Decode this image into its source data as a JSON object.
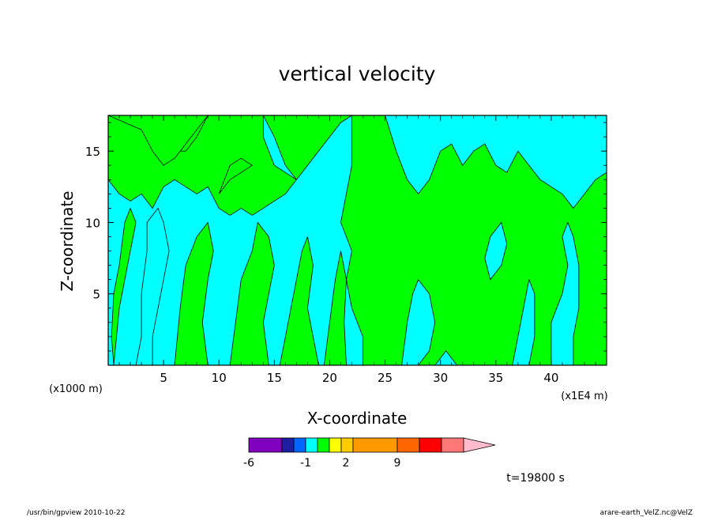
{
  "chart_data": {
    "type": "heatmap",
    "title": "vertical velocity",
    "xlabel": "X-coordinate",
    "ylabel": "Z-coordinate",
    "x_unit_left": "(x1000 m)",
    "x_unit_right": "(x1E4 m)",
    "xlim": [
      0,
      45
    ],
    "ylim": [
      0,
      17.5
    ],
    "xticks": [
      "5",
      "10",
      "15",
      "20",
      "25",
      "30",
      "35",
      "40"
    ],
    "yticks": [
      "5",
      "10",
      "15"
    ],
    "x_tick_values": [
      5,
      10,
      15,
      20,
      25,
      30,
      35,
      40
    ],
    "y_tick_values": [
      5,
      10,
      15
    ],
    "background_color": "#00ff00",
    "colorbar": {
      "colors": [
        "#7f00bf",
        "#1e1ea0",
        "#0066ff",
        "#00ffff",
        "#00ff00",
        "#ffff00",
        "#ffcc00",
        "#ff9900",
        "#ff6600",
        "#ff0000",
        "#ff7777",
        "#ffbbcc"
      ],
      "labels": [
        "-6",
        "-1",
        "2",
        "9"
      ],
      "label_positions": [
        0,
        3,
        6,
        10
      ]
    },
    "regions": [
      {
        "level": "cyan",
        "color": "#00ffff",
        "polygons": [
          [
            [
              0,
              13
            ],
            [
              1,
              12
            ],
            [
              2,
              11.5
            ],
            [
              3,
              12
            ],
            [
              4,
              11
            ],
            [
              5,
              12.5
            ],
            [
              6,
              13
            ],
            [
              7,
              12.5
            ],
            [
              8,
              12
            ],
            [
              9,
              12.5
            ],
            [
              10,
              11
            ],
            [
              11,
              10.5
            ],
            [
              12,
              11
            ],
            [
              13,
              10.5
            ],
            [
              14,
              11
            ],
            [
              15,
              11.5
            ],
            [
              16,
              12
            ],
            [
              17,
              13
            ],
            [
              18,
              14
            ],
            [
              19,
              15
            ],
            [
              20,
              16
            ],
            [
              21,
              17
            ],
            [
              22,
              17.5
            ],
            [
              22,
              14
            ],
            [
              21.5,
              12
            ],
            [
              21,
              10
            ],
            [
              22,
              8
            ],
            [
              21.5,
              6
            ],
            [
              22,
              4
            ],
            [
              23,
              2
            ],
            [
              23,
              0
            ],
            [
              0,
              0
            ]
          ],
          [
            [
              14,
              17.5
            ],
            [
              15,
              16
            ],
            [
              16,
              14
            ],
            [
              17,
              13
            ],
            [
              15,
              14
            ],
            [
              14,
              16
            ]
          ],
          [
            [
              25,
              17.5
            ],
            [
              26,
              15
            ],
            [
              27,
              13
            ],
            [
              28,
              12
            ],
            [
              29,
              13
            ],
            [
              30,
              15
            ],
            [
              31,
              15.5
            ],
            [
              32,
              14
            ],
            [
              33,
              15
            ],
            [
              34,
              15.5
            ],
            [
              35,
              14
            ],
            [
              36,
              13.5
            ],
            [
              37,
              15
            ],
            [
              38,
              14
            ],
            [
              39,
              13
            ],
            [
              40,
              12.5
            ],
            [
              41,
              12
            ],
            [
              42,
              11
            ],
            [
              43,
              12
            ],
            [
              44,
              13
            ],
            [
              45,
              13.5
            ],
            [
              45,
              17.5
            ]
          ],
          [
            [
              29.5,
              0
            ],
            [
              30.5,
              1
            ],
            [
              31.5,
              0
            ]
          ],
          [
            [
              34.5,
              6
            ],
            [
              35.5,
              7
            ],
            [
              36,
              8.5
            ],
            [
              35.5,
              10
            ],
            [
              34.5,
              9
            ],
            [
              34,
              7.5
            ]
          ],
          [
            [
              40,
              0
            ],
            [
              40,
              3
            ],
            [
              41,
              5
            ],
            [
              41.5,
              7
            ],
            [
              41,
              9
            ],
            [
              41.5,
              10
            ],
            [
              42,
              9
            ],
            [
              42.5,
              7
            ],
            [
              42.5,
              4
            ],
            [
              42,
              2
            ],
            [
              42,
              0
            ]
          ],
          [
            [
              4,
              0
            ],
            [
              4,
              2
            ],
            [
              4.5,
              4
            ],
            [
              5,
              6
            ],
            [
              5.5,
              8
            ],
            [
              5,
              10
            ],
            [
              4.5,
              11
            ],
            [
              3.5,
              10
            ],
            [
              3.5,
              8
            ],
            [
              3,
              5
            ],
            [
              3,
              2
            ],
            [
              2.5,
              0
            ]
          ]
        ]
      },
      {
        "level": "green",
        "color": "#00ff00",
        "polygons": [
          [
            [
              0.5,
              0
            ],
            [
              1,
              4
            ],
            [
              1.5,
              6
            ],
            [
              2,
              8
            ],
            [
              2.5,
              10
            ],
            [
              2,
              11
            ],
            [
              1.5,
              10
            ],
            [
              1,
              7
            ],
            [
              0.5,
              5
            ],
            [
              0.3,
              2
            ]
          ],
          [
            [
              6,
              0
            ],
            [
              6.5,
              4
            ],
            [
              7,
              7
            ],
            [
              8,
              9
            ],
            [
              9,
              10
            ],
            [
              9.5,
              8
            ],
            [
              9,
              6
            ],
            [
              8.5,
              3
            ],
            [
              9,
              0
            ]
          ],
          [
            [
              11,
              0
            ],
            [
              11.5,
              3
            ],
            [
              12,
              6
            ],
            [
              13,
              8
            ],
            [
              13.5,
              10
            ],
            [
              14.5,
              9
            ],
            [
              15,
              7
            ],
            [
              14.5,
              5
            ],
            [
              14,
              3
            ],
            [
              14.5,
              0
            ]
          ],
          [
            [
              15.5,
              0
            ],
            [
              16,
              2
            ],
            [
              16.5,
              4
            ],
            [
              17,
              6
            ],
            [
              17.5,
              8
            ],
            [
              18,
              9
            ],
            [
              18.5,
              7
            ],
            [
              18,
              4
            ],
            [
              18.5,
              2
            ],
            [
              19,
              0
            ]
          ],
          [
            [
              19.5,
              0
            ],
            [
              20,
              3
            ],
            [
              20.5,
              6
            ],
            [
              21,
              8
            ],
            [
              21.5,
              6
            ],
            [
              21.3,
              3
            ],
            [
              21.5,
              0
            ]
          ],
          [
            [
              10,
              12
            ],
            [
              11,
              13
            ],
            [
              12,
              13.5
            ],
            [
              13,
              14
            ],
            [
              12,
              14.5
            ],
            [
              11,
              14
            ]
          ],
          [
            [
              5,
              15
            ],
            [
              6,
              16
            ],
            [
              7,
              17
            ],
            [
              8,
              17.5
            ],
            [
              9,
              17.5
            ],
            [
              8,
              16
            ],
            [
              7,
              15
            ]
          ],
          [
            [
              0,
              17.5
            ],
            [
              3,
              16.5
            ],
            [
              4,
              15
            ],
            [
              5,
              14
            ],
            [
              6,
              14.5
            ],
            [
              7,
              15.5
            ],
            [
              8,
              16.5
            ],
            [
              9,
              17.5
            ]
          ]
        ]
      },
      {
        "level": "cyan",
        "color": "#00ffff",
        "polygons": [
          [
            [
              26.5,
              0
            ],
            [
              27,
              3
            ],
            [
              27.5,
              5
            ],
            [
              28,
              6
            ],
            [
              29,
              5
            ],
            [
              29.5,
              3
            ],
            [
              29,
              1
            ],
            [
              28,
              0
            ]
          ],
          [
            [
              36.5,
              0
            ],
            [
              37,
              2
            ],
            [
              37.5,
              4
            ],
            [
              38,
              6
            ],
            [
              38.5,
              5
            ],
            [
              38.5,
              2
            ],
            [
              38,
              0
            ]
          ]
        ]
      }
    ],
    "timestamp": "t=19800 s",
    "footer_left": "/usr/bin/gpview   2010-10-22",
    "footer_right": "arare-earth_VelZ.nc@VelZ"
  }
}
